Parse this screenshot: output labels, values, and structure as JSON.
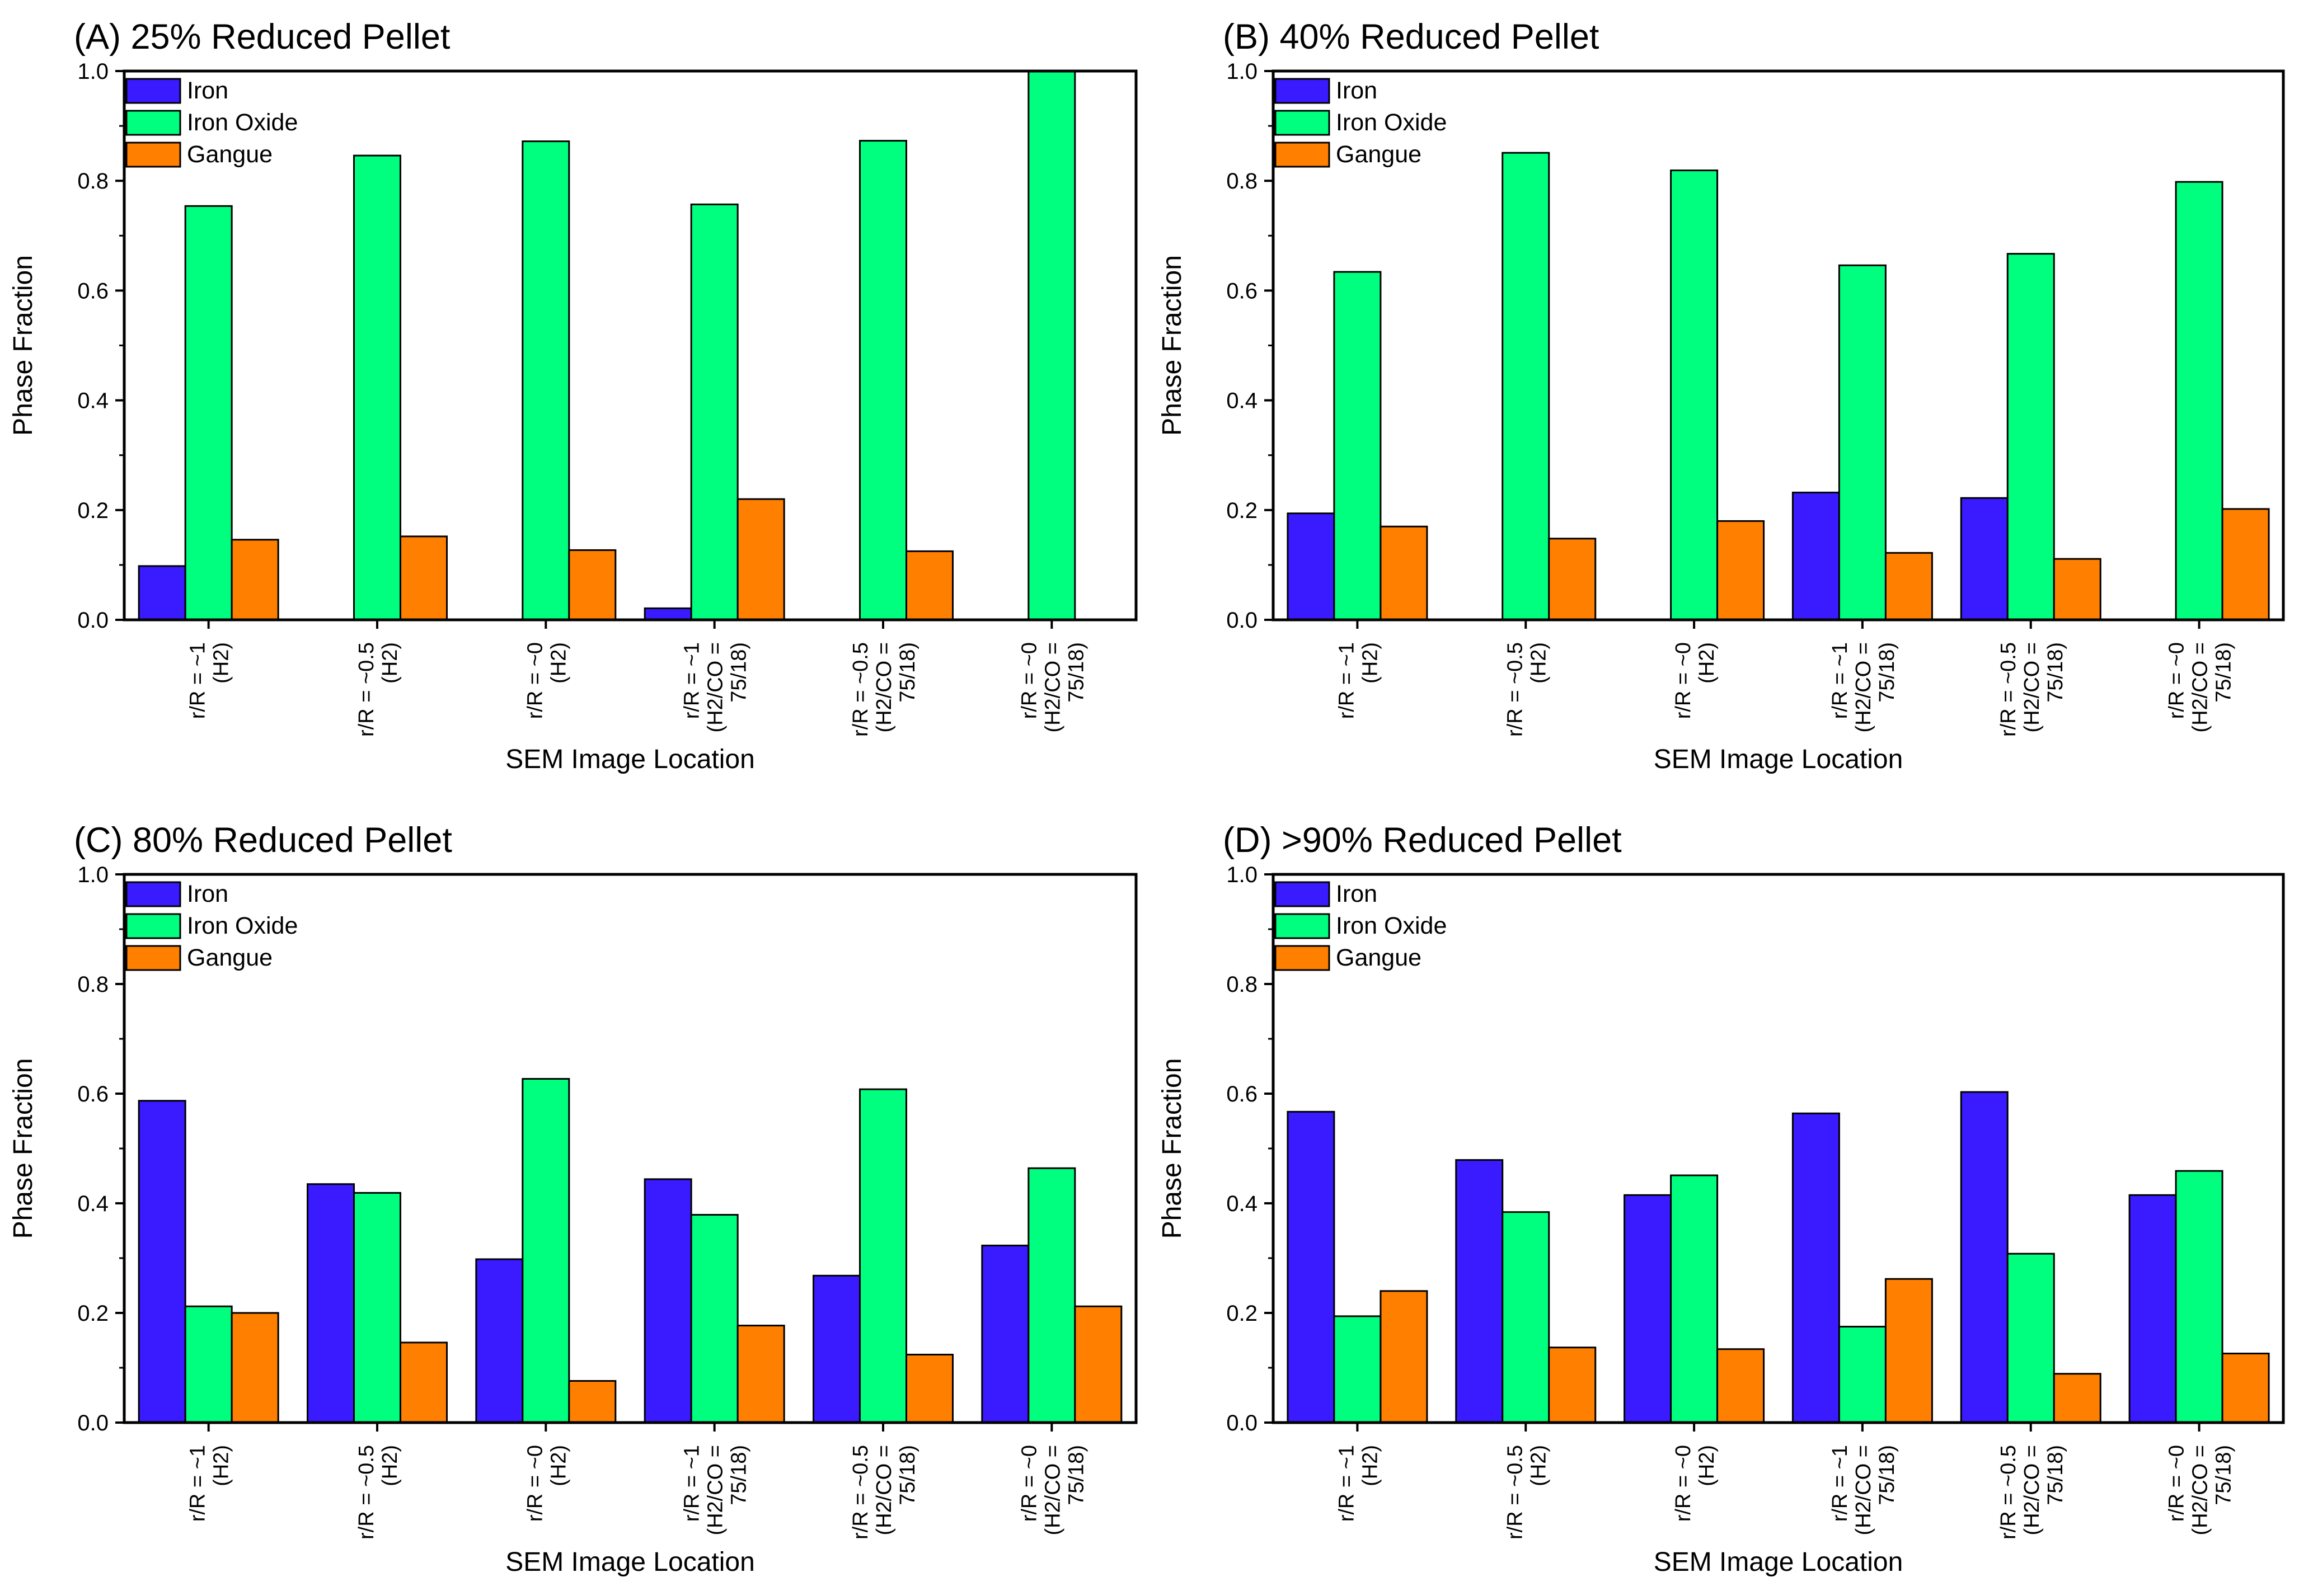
{
  "chart_data": [
    {
      "type": "bar",
      "title": "(A) 25% Reduced Pellet",
      "xlabel": "SEM Image Location",
      "ylabel": "Phase Fraction",
      "ylim": [
        0,
        1.0
      ],
      "yticks": [
        "0.0",
        "0.2",
        "0.4",
        "0.6",
        "0.8",
        "1.0"
      ],
      "categories": [
        [
          "r/R = ~1",
          "(H2)"
        ],
        [
          "r/R = ~0.5",
          "(H2)"
        ],
        [
          "r/R = ~0",
          "(H2)"
        ],
        [
          "r/R = ~1",
          "(H2/CO =",
          "75/18)"
        ],
        [
          "r/R = ~0.5",
          "(H2/CO =",
          "75/18)"
        ],
        [
          "r/R = ~0",
          "(H2/CO =",
          "75/18)"
        ]
      ],
      "series": [
        {
          "name": "Iron",
          "color": "#3a1aff",
          "values": [
            0.098,
            0,
            0,
            0.021,
            0,
            0
          ]
        },
        {
          "name": "Iron Oxide",
          "color": "#00ff7f",
          "values": [
            0.754,
            0.846,
            0.872,
            0.757,
            0.873,
            1.0
          ]
        },
        {
          "name": "Gangue",
          "color": "#ff7f00",
          "values": [
            0.146,
            0.152,
            0.127,
            0.22,
            0.125,
            0
          ]
        }
      ],
      "legend": "top-left"
    },
    {
      "type": "bar",
      "title": "(B) 40% Reduced Pellet",
      "xlabel": "SEM Image Location",
      "ylabel": "Phase Fraction",
      "ylim": [
        0,
        1.0
      ],
      "yticks": [
        "0.0",
        "0.2",
        "0.4",
        "0.6",
        "0.8",
        "1.0"
      ],
      "categories": [
        [
          "r/R = ~1",
          "(H2)"
        ],
        [
          "r/R = ~0.5",
          "(H2)"
        ],
        [
          "r/R = ~0",
          "(H2)"
        ],
        [
          "r/R = ~1",
          "(H2/CO =",
          "75/18)"
        ],
        [
          "r/R = ~0.5",
          "(H2/CO =",
          "75/18)"
        ],
        [
          "r/R = ~0",
          "(H2/CO =",
          "75/18)"
        ]
      ],
      "series": [
        {
          "name": "Iron",
          "color": "#3a1aff",
          "values": [
            0.194,
            0,
            0,
            0.232,
            0.222,
            0
          ]
        },
        {
          "name": "Iron Oxide",
          "color": "#00ff7f",
          "values": [
            0.634,
            0.851,
            0.819,
            0.646,
            0.667,
            0.798
          ]
        },
        {
          "name": "Gangue",
          "color": "#ff7f00",
          "values": [
            0.17,
            0.148,
            0.18,
            0.122,
            0.111,
            0.202
          ]
        }
      ],
      "legend": "top-left"
    },
    {
      "type": "bar",
      "title": "(C) 80% Reduced Pellet",
      "xlabel": "SEM Image Location",
      "ylabel": "Phase Fraction",
      "ylim": [
        0,
        1.0
      ],
      "yticks": [
        "0.0",
        "0.2",
        "0.4",
        "0.6",
        "0.8",
        "1.0"
      ],
      "categories": [
        [
          "r/R = ~1",
          "(H2)"
        ],
        [
          "r/R = ~0.5",
          "(H2)"
        ],
        [
          "r/R = ~0",
          "(H2)"
        ],
        [
          "r/R = ~1",
          "(H2/CO =",
          "75/18)"
        ],
        [
          "r/R = ~0.5",
          "(H2/CO =",
          "75/18)"
        ],
        [
          "r/R = ~0",
          "(H2/CO =",
          "75/18)"
        ]
      ],
      "series": [
        {
          "name": "Iron",
          "color": "#3a1aff",
          "values": [
            0.587,
            0.435,
            0.298,
            0.444,
            0.268,
            0.323
          ]
        },
        {
          "name": "Iron Oxide",
          "color": "#00ff7f",
          "values": [
            0.212,
            0.419,
            0.627,
            0.379,
            0.608,
            0.464
          ]
        },
        {
          "name": "Gangue",
          "color": "#ff7f00",
          "values": [
            0.2,
            0.146,
            0.076,
            0.177,
            0.124,
            0.212
          ]
        }
      ],
      "legend": "top-left"
    },
    {
      "type": "bar",
      "title": "(D) >90% Reduced Pellet",
      "xlabel": "SEM Image Location",
      "ylabel": "Phase Fraction",
      "ylim": [
        0,
        1.0
      ],
      "yticks": [
        "0.0",
        "0.2",
        "0.4",
        "0.6",
        "0.8",
        "1.0"
      ],
      "categories": [
        [
          "r/R = ~1",
          "(H2)"
        ],
        [
          "r/R = ~0.5",
          "(H2)"
        ],
        [
          "r/R = ~0",
          "(H2)"
        ],
        [
          "r/R = ~1",
          "(H2/CO =",
          "75/18)"
        ],
        [
          "r/R = ~0.5",
          "(H2/CO =",
          "75/18)"
        ],
        [
          "r/R = ~0",
          "(H2/CO =",
          "75/18)"
        ]
      ],
      "series": [
        {
          "name": "Iron",
          "color": "#3a1aff",
          "values": [
            0.567,
            0.479,
            0.415,
            0.564,
            0.603,
            0.415
          ]
        },
        {
          "name": "Iron Oxide",
          "color": "#00ff7f",
          "values": [
            0.194,
            0.384,
            0.451,
            0.175,
            0.308,
            0.459
          ]
        },
        {
          "name": "Gangue",
          "color": "#ff7f00",
          "values": [
            0.24,
            0.137,
            0.134,
            0.262,
            0.089,
            0.126
          ]
        }
      ],
      "legend": "top-left"
    }
  ]
}
